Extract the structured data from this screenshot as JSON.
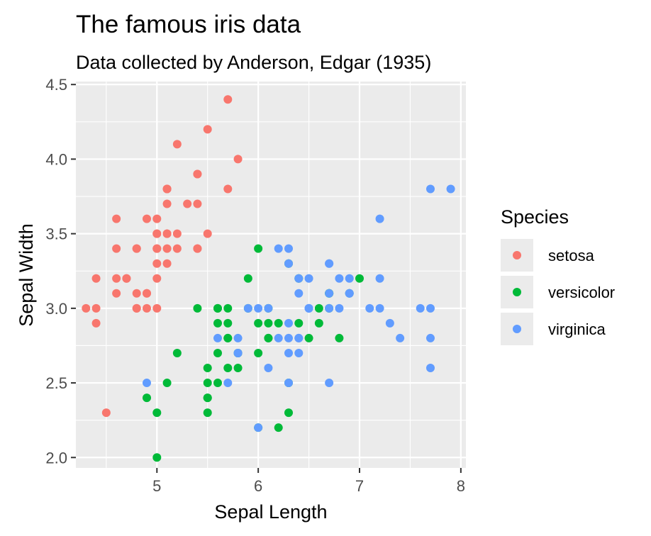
{
  "chart_data": {
    "type": "scatter",
    "title": "The famous iris data",
    "subtitle": "Data collected by Anderson, Edgar (1935)",
    "xlabel": "Sepal Length",
    "ylabel": "Sepal Width",
    "xlim": [
      4.2,
      8.05
    ],
    "ylim": [
      1.93,
      4.52
    ],
    "x_ticks": [
      5,
      6,
      7,
      8
    ],
    "y_ticks": [
      2.0,
      2.5,
      3.0,
      3.5,
      4.0,
      4.5
    ],
    "x_tick_labels": [
      "5",
      "6",
      "7",
      "8"
    ],
    "y_tick_labels": [
      "2.0",
      "2.5",
      "3.0",
      "3.5",
      "4.0",
      "4.5"
    ],
    "grid": true,
    "legend": {
      "title": "Species",
      "position": "right"
    },
    "series": [
      {
        "name": "setosa",
        "color": "#F8766D",
        "points": [
          [
            5.1,
            3.5
          ],
          [
            4.9,
            3.0
          ],
          [
            4.7,
            3.2
          ],
          [
            4.6,
            3.1
          ],
          [
            5.0,
            3.6
          ],
          [
            5.4,
            3.9
          ],
          [
            4.6,
            3.4
          ],
          [
            5.0,
            3.4
          ],
          [
            4.4,
            2.9
          ],
          [
            4.9,
            3.1
          ],
          [
            5.4,
            3.7
          ],
          [
            4.8,
            3.4
          ],
          [
            4.8,
            3.0
          ],
          [
            4.3,
            3.0
          ],
          [
            5.8,
            4.0
          ],
          [
            5.7,
            4.4
          ],
          [
            5.4,
            3.9
          ],
          [
            5.1,
            3.5
          ],
          [
            5.7,
            3.8
          ],
          [
            5.1,
            3.8
          ],
          [
            5.4,
            3.4
          ],
          [
            5.1,
            3.7
          ],
          [
            4.6,
            3.6
          ],
          [
            5.1,
            3.3
          ],
          [
            4.8,
            3.4
          ],
          [
            5.0,
            3.0
          ],
          [
            5.0,
            3.4
          ],
          [
            5.2,
            3.5
          ],
          [
            5.2,
            3.4
          ],
          [
            4.7,
            3.2
          ],
          [
            4.8,
            3.1
          ],
          [
            5.4,
            3.4
          ],
          [
            5.2,
            4.1
          ],
          [
            5.5,
            4.2
          ],
          [
            4.9,
            3.1
          ],
          [
            5.0,
            3.2
          ],
          [
            5.5,
            3.5
          ],
          [
            4.9,
            3.6
          ],
          [
            4.4,
            3.0
          ],
          [
            5.1,
            3.4
          ],
          [
            5.0,
            3.5
          ],
          [
            4.5,
            2.3
          ],
          [
            4.4,
            3.2
          ],
          [
            5.0,
            3.5
          ],
          [
            5.1,
            3.8
          ],
          [
            4.8,
            3.0
          ],
          [
            5.1,
            3.8
          ],
          [
            4.6,
            3.2
          ],
          [
            5.3,
            3.7
          ],
          [
            5.0,
            3.3
          ]
        ]
      },
      {
        "name": "versicolor",
        "color": "#00BA38",
        "points": [
          [
            7.0,
            3.2
          ],
          [
            6.4,
            3.2
          ],
          [
            6.9,
            3.1
          ],
          [
            5.5,
            2.3
          ],
          [
            6.5,
            2.8
          ],
          [
            5.7,
            2.8
          ],
          [
            6.3,
            3.3
          ],
          [
            4.9,
            2.4
          ],
          [
            6.6,
            2.9
          ],
          [
            5.2,
            2.7
          ],
          [
            5.0,
            2.0
          ],
          [
            5.9,
            3.0
          ],
          [
            6.0,
            2.2
          ],
          [
            6.1,
            2.9
          ],
          [
            5.6,
            2.9
          ],
          [
            6.7,
            3.1
          ],
          [
            5.6,
            3.0
          ],
          [
            5.8,
            2.7
          ],
          [
            6.2,
            2.2
          ],
          [
            5.6,
            2.5
          ],
          [
            5.9,
            3.2
          ],
          [
            6.1,
            2.8
          ],
          [
            6.3,
            2.5
          ],
          [
            6.1,
            2.8
          ],
          [
            6.4,
            2.9
          ],
          [
            6.6,
            3.0
          ],
          [
            6.8,
            2.8
          ],
          [
            6.7,
            3.0
          ],
          [
            6.0,
            2.9
          ],
          [
            5.7,
            2.6
          ],
          [
            5.5,
            2.4
          ],
          [
            5.5,
            2.4
          ],
          [
            5.8,
            2.7
          ],
          [
            6.0,
            2.7
          ],
          [
            5.4,
            3.0
          ],
          [
            6.0,
            3.4
          ],
          [
            6.7,
            3.1
          ],
          [
            6.3,
            2.3
          ],
          [
            5.6,
            3.0
          ],
          [
            5.5,
            2.5
          ],
          [
            5.5,
            2.6
          ],
          [
            6.1,
            3.0
          ],
          [
            5.8,
            2.6
          ],
          [
            5.0,
            2.3
          ],
          [
            5.6,
            2.7
          ],
          [
            5.7,
            3.0
          ],
          [
            5.7,
            2.9
          ],
          [
            6.2,
            2.9
          ],
          [
            5.1,
            2.5
          ],
          [
            5.7,
            2.8
          ]
        ]
      },
      {
        "name": "virginica",
        "color": "#619CFF",
        "points": [
          [
            6.3,
            3.3
          ],
          [
            5.8,
            2.7
          ],
          [
            7.1,
            3.0
          ],
          [
            6.3,
            2.9
          ],
          [
            6.5,
            3.0
          ],
          [
            7.6,
            3.0
          ],
          [
            4.9,
            2.5
          ],
          [
            7.3,
            2.9
          ],
          [
            6.7,
            2.5
          ],
          [
            7.2,
            3.6
          ],
          [
            6.5,
            3.2
          ],
          [
            6.4,
            2.7
          ],
          [
            6.8,
            3.0
          ],
          [
            5.7,
            2.5
          ],
          [
            5.8,
            2.8
          ],
          [
            6.4,
            3.2
          ],
          [
            6.5,
            3.0
          ],
          [
            7.7,
            3.8
          ],
          [
            7.7,
            2.6
          ],
          [
            6.0,
            2.2
          ],
          [
            6.9,
            3.2
          ],
          [
            5.6,
            2.8
          ],
          [
            7.7,
            2.8
          ],
          [
            6.3,
            2.7
          ],
          [
            6.7,
            3.3
          ],
          [
            7.2,
            3.2
          ],
          [
            6.2,
            2.8
          ],
          [
            6.1,
            3.0
          ],
          [
            6.4,
            2.8
          ],
          [
            7.2,
            3.0
          ],
          [
            7.4,
            2.8
          ],
          [
            7.9,
            3.8
          ],
          [
            6.4,
            2.8
          ],
          [
            6.3,
            2.8
          ],
          [
            6.1,
            2.6
          ],
          [
            7.7,
            3.0
          ],
          [
            6.3,
            3.4
          ],
          [
            6.4,
            3.1
          ],
          [
            6.0,
            3.0
          ],
          [
            6.9,
            3.1
          ],
          [
            6.7,
            3.1
          ],
          [
            6.9,
            3.1
          ],
          [
            5.8,
            2.7
          ],
          [
            6.8,
            3.2
          ],
          [
            6.7,
            3.3
          ],
          [
            6.7,
            3.0
          ],
          [
            6.3,
            2.5
          ],
          [
            6.5,
            3.0
          ],
          [
            6.2,
            3.4
          ],
          [
            5.9,
            3.0
          ]
        ]
      }
    ]
  }
}
